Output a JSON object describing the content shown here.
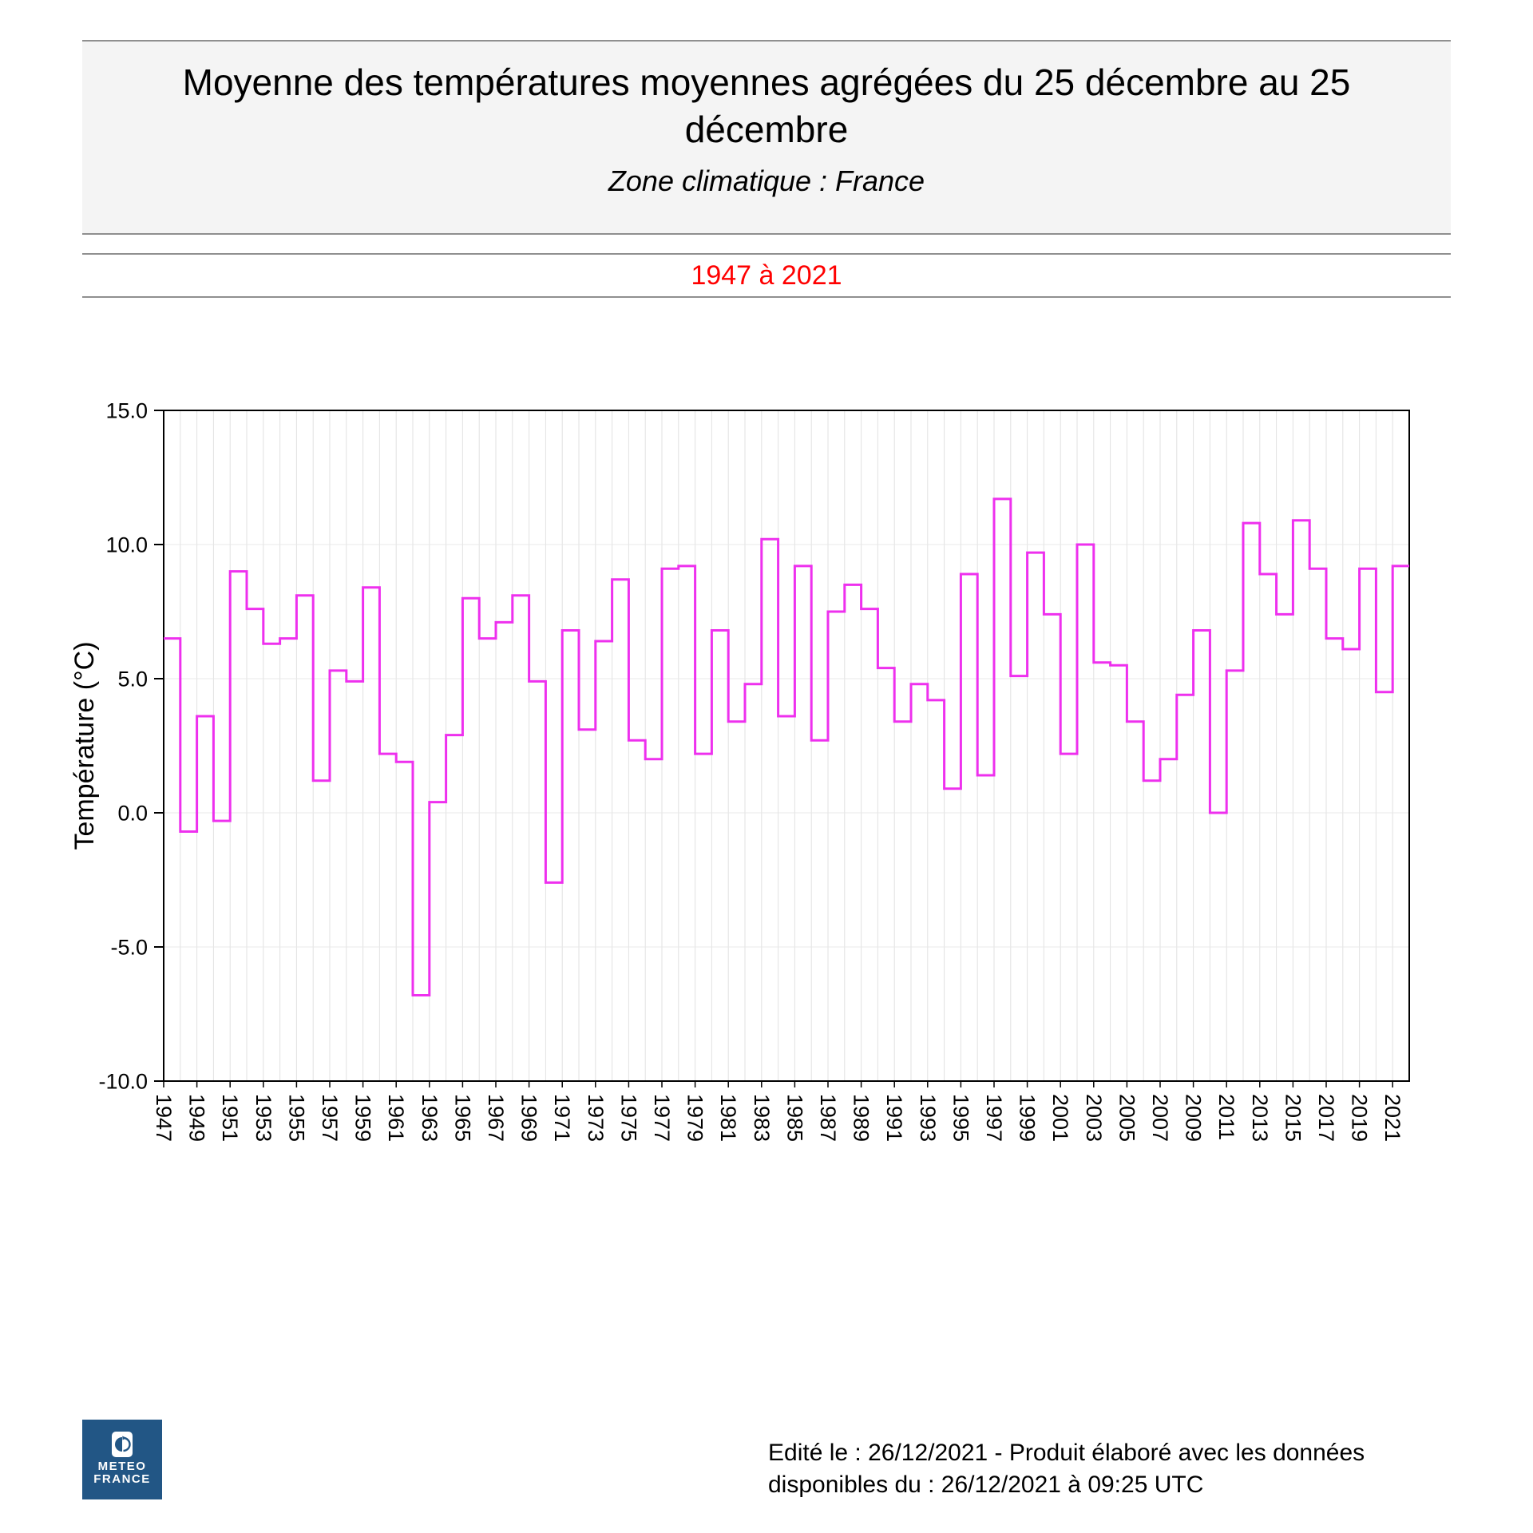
{
  "header": {
    "title": "Moyenne des températures moyennes agrégées du 25 décembre au 25 décembre",
    "subtitle": "Zone climatique : France",
    "period": "1947 à 2021"
  },
  "chart_data": {
    "type": "line",
    "subtype": "step",
    "title": "Moyenne des températures moyennes agrégées du 25 décembre au 25 décembre - Zone climatique : France - 1947 à 2021",
    "xlabel": "",
    "ylabel": "Température (°C)",
    "ylim": [
      -10,
      15
    ],
    "yticks": [
      "15.0",
      "10.0",
      "5.0",
      "0.0",
      "-5.0",
      "-10.0"
    ],
    "xtick_label_interval": 2,
    "grid": true,
    "legend": false,
    "line_color": "#ee30ee",
    "years": [
      1947,
      1948,
      1949,
      1950,
      1951,
      1952,
      1953,
      1954,
      1955,
      1956,
      1957,
      1958,
      1959,
      1960,
      1961,
      1962,
      1963,
      1964,
      1965,
      1966,
      1967,
      1968,
      1969,
      1970,
      1971,
      1972,
      1973,
      1974,
      1975,
      1976,
      1977,
      1978,
      1979,
      1980,
      1981,
      1982,
      1983,
      1984,
      1985,
      1986,
      1987,
      1988,
      1989,
      1990,
      1991,
      1992,
      1993,
      1994,
      1995,
      1996,
      1997,
      1998,
      1999,
      2000,
      2001,
      2002,
      2003,
      2004,
      2005,
      2006,
      2007,
      2008,
      2009,
      2010,
      2011,
      2012,
      2013,
      2014,
      2015,
      2016,
      2017,
      2018,
      2019,
      2020,
      2021
    ],
    "values": [
      6.5,
      -0.7,
      3.6,
      -0.3,
      9.0,
      7.6,
      6.3,
      6.5,
      8.1,
      1.2,
      5.3,
      4.9,
      8.4,
      2.2,
      1.9,
      -6.8,
      0.4,
      2.9,
      8.0,
      6.5,
      7.1,
      8.1,
      4.9,
      -2.6,
      6.8,
      3.1,
      6.4,
      8.7,
      2.7,
      2.0,
      9.1,
      9.2,
      2.2,
      6.8,
      3.4,
      4.8,
      10.2,
      3.6,
      9.2,
      2.7,
      7.5,
      8.5,
      7.6,
      5.4,
      3.4,
      4.8,
      4.2,
      0.9,
      8.9,
      1.4,
      11.7,
      5.1,
      9.7,
      7.4,
      2.2,
      10.0,
      5.6,
      5.5,
      3.4,
      1.2,
      2.0,
      4.4,
      6.8,
      0.0,
      5.3,
      10.8,
      8.9,
      7.4,
      10.9,
      9.1,
      6.5,
      6.1,
      9.1,
      4.5,
      9.2
    ]
  },
  "footer": {
    "credit_line1": "Edité le : 26/12/2021 - Produit élaboré avec les données",
    "credit_line2": "disponibles du : 26/12/2021 à 09:25 UTC",
    "logo": {
      "line1": "METEO",
      "line2": "FRANCE",
      "bg_color": "#225685",
      "icon": "meteo-france-globe-icon"
    }
  },
  "colors": {
    "accent_line": "#ee30ee",
    "period_text": "#ff0000",
    "header_background": "#f4f4f4",
    "rule": "#8f8f8f",
    "gridline": "#e2e2e2",
    "logo_background": "#225685"
  }
}
